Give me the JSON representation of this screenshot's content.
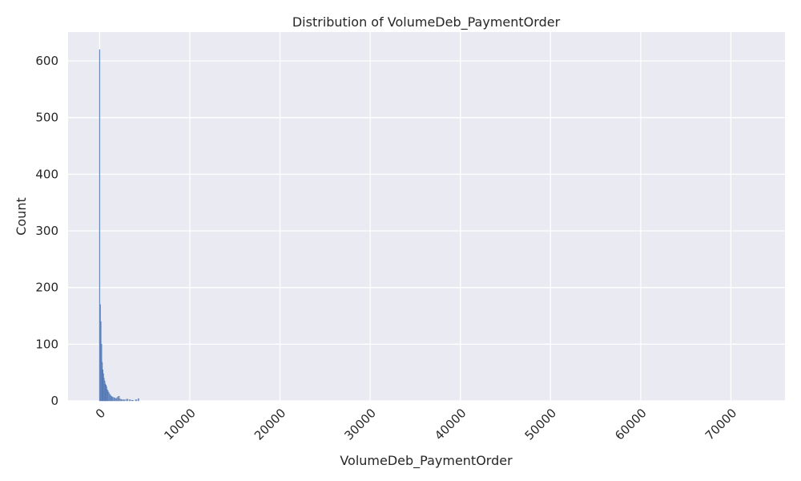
{
  "chart_data": {
    "type": "bar",
    "title": "Distribution of VolumeDeb_PaymentOrder",
    "xlabel": "VolumeDeb_PaymentOrder",
    "ylabel": "Count",
    "xlim": [
      -3500,
      76000
    ],
    "ylim": [
      0,
      651
    ],
    "x_ticks": [
      0,
      10000,
      20000,
      30000,
      40000,
      50000,
      60000,
      70000
    ],
    "y_ticks": [
      0,
      100,
      200,
      300,
      400,
      500,
      600
    ],
    "grid": true,
    "colors": {
      "background": "#eaeaf2",
      "grid": "#ffffff",
      "bar_fill": "#4c72b0",
      "bar_edge": "#4c72b0"
    },
    "bins": {
      "x": [
        20,
        90,
        160,
        230,
        300,
        370,
        440,
        510,
        580,
        650,
        720,
        790,
        860,
        930,
        1000,
        1100,
        1200,
        1300,
        1400,
        1500,
        1650,
        1800,
        1950,
        2100,
        2250,
        2450,
        2700,
        3000,
        3300,
        3600,
        4000,
        4300
      ],
      "values": [
        620,
        170,
        140,
        100,
        68,
        55,
        48,
        40,
        35,
        30,
        28,
        25,
        20,
        18,
        15,
        12,
        10,
        8,
        7,
        6,
        5,
        4,
        6,
        8,
        3,
        2,
        2,
        3,
        2,
        1,
        2,
        4
      ]
    }
  }
}
